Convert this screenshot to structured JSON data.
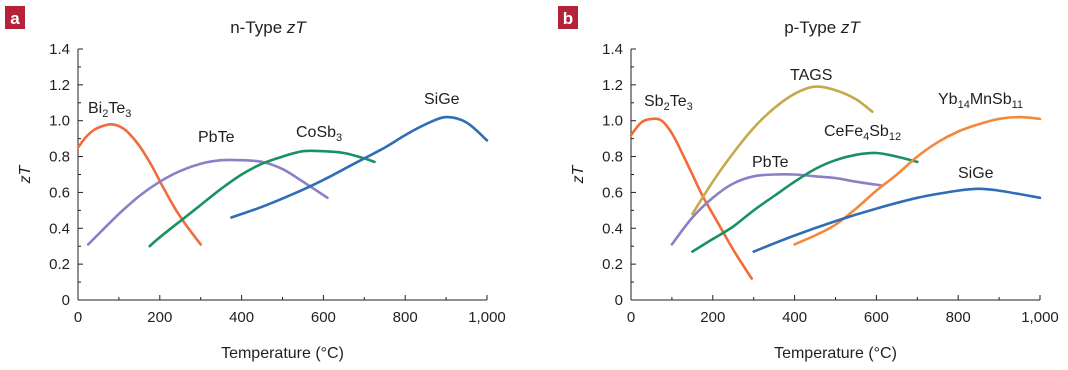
{
  "chart_data": [
    {
      "type": "line",
      "panel_label": "a",
      "title_prefix": "n-Type ",
      "title_italic": "zT",
      "xlabel": "Temperature (°C)",
      "ylabel": "zT",
      "xlim": [
        0,
        1000
      ],
      "ylim": [
        0,
        1.4
      ],
      "xticks": [
        "0",
        "200",
        "400",
        "600",
        "800",
        "1,000"
      ],
      "yticks": [
        "0",
        "0.2",
        "0.4",
        "0.6",
        "0.8",
        "1.0",
        "1.2",
        "1.4"
      ],
      "grid": false,
      "series": [
        {
          "name": "Bi",
          "sub1": "2",
          "mid": "Te",
          "sub2": "3",
          "end": "",
          "color": "#f26b3a",
          "points": [
            [
              0,
              0.85
            ],
            [
              20,
              0.91
            ],
            [
              40,
              0.95
            ],
            [
              60,
              0.97
            ],
            [
              80,
              0.98
            ],
            [
              100,
              0.97
            ],
            [
              120,
              0.94
            ],
            [
              150,
              0.86
            ],
            [
              180,
              0.75
            ],
            [
              210,
              0.62
            ],
            [
              240,
              0.5
            ],
            [
              270,
              0.4
            ],
            [
              300,
              0.31
            ]
          ]
        },
        {
          "name": "PbTe",
          "color": "#8b7fc7",
          "points": [
            [
              25,
              0.31
            ],
            [
              60,
              0.39
            ],
            [
              100,
              0.48
            ],
            [
              150,
              0.58
            ],
            [
              200,
              0.66
            ],
            [
              250,
              0.72
            ],
            [
              300,
              0.76
            ],
            [
              350,
              0.78
            ],
            [
              400,
              0.78
            ],
            [
              450,
              0.77
            ],
            [
              500,
              0.73
            ],
            [
              550,
              0.66
            ],
            [
              610,
              0.57
            ]
          ]
        },
        {
          "name": "CoSb",
          "sub1": "3",
          "mid": "",
          "sub2": "",
          "end": "",
          "color": "#1a9160",
          "points": [
            [
              175,
              0.3
            ],
            [
              200,
              0.35
            ],
            [
              250,
              0.44
            ],
            [
              300,
              0.53
            ],
            [
              350,
              0.62
            ],
            [
              400,
              0.7
            ],
            [
              450,
              0.76
            ],
            [
              500,
              0.8
            ],
            [
              550,
              0.83
            ],
            [
              600,
              0.83
            ],
            [
              650,
              0.82
            ],
            [
              700,
              0.79
            ],
            [
              725,
              0.77
            ]
          ]
        },
        {
          "name": "SiGe",
          "color": "#2f6db5",
          "points": [
            [
              375,
              0.46
            ],
            [
              450,
              0.52
            ],
            [
              525,
              0.59
            ],
            [
              600,
              0.67
            ],
            [
              675,
              0.76
            ],
            [
              750,
              0.85
            ],
            [
              800,
              0.92
            ],
            [
              850,
              0.98
            ],
            [
              900,
              1.02
            ],
            [
              950,
              0.99
            ],
            [
              1000,
              0.89
            ]
          ]
        }
      ]
    },
    {
      "type": "line",
      "panel_label": "b",
      "title_prefix": "p-Type ",
      "title_italic": "zT",
      "xlabel": "Temperature (°C)",
      "ylabel": "zT",
      "xlim": [
        0,
        1000
      ],
      "ylim": [
        0,
        1.4
      ],
      "xticks": [
        "0",
        "200",
        "400",
        "600",
        "800",
        "1,000"
      ],
      "yticks": [
        "0",
        "0.2",
        "0.4",
        "0.6",
        "0.8",
        "1.0",
        "1.2",
        "1.4"
      ],
      "grid": false,
      "series": [
        {
          "name": "Sb",
          "sub1": "2",
          "mid": "Te",
          "sub2": "3",
          "end": "",
          "color": "#f26b3a",
          "points": [
            [
              0,
              0.92
            ],
            [
              25,
              0.99
            ],
            [
              50,
              1.01
            ],
            [
              75,
              1.0
            ],
            [
              100,
              0.93
            ],
            [
              125,
              0.82
            ],
            [
              150,
              0.7
            ],
            [
              175,
              0.58
            ],
            [
              200,
              0.48
            ],
            [
              225,
              0.38
            ],
            [
              250,
              0.28
            ],
            [
              275,
              0.19
            ],
            [
              295,
              0.12
            ]
          ]
        },
        {
          "name": "TAGS",
          "color": "#c7a84a",
          "points": [
            [
              150,
              0.48
            ],
            [
              200,
              0.66
            ],
            [
              250,
              0.82
            ],
            [
              300,
              0.96
            ],
            [
              350,
              1.07
            ],
            [
              400,
              1.15
            ],
            [
              450,
              1.19
            ],
            [
              500,
              1.17
            ],
            [
              550,
              1.12
            ],
            [
              590,
              1.05
            ]
          ]
        },
        {
          "name": "PbTe",
          "color": "#8b7fc7",
          "points": [
            [
              100,
              0.31
            ],
            [
              150,
              0.46
            ],
            [
              200,
              0.57
            ],
            [
              250,
              0.65
            ],
            [
              300,
              0.69
            ],
            [
              350,
              0.7
            ],
            [
              400,
              0.7
            ],
            [
              450,
              0.69
            ],
            [
              500,
              0.68
            ],
            [
              550,
              0.66
            ],
            [
              610,
              0.64
            ]
          ]
        },
        {
          "name": "CeFe",
          "sub1": "4",
          "mid": "Sb",
          "sub2": "12",
          "end": "",
          "color": "#1a9160",
          "points": [
            [
              150,
              0.27
            ],
            [
              200,
              0.34
            ],
            [
              250,
              0.41
            ],
            [
              300,
              0.5
            ],
            [
              350,
              0.58
            ],
            [
              400,
              0.66
            ],
            [
              450,
              0.73
            ],
            [
              500,
              0.78
            ],
            [
              550,
              0.81
            ],
            [
              600,
              0.82
            ],
            [
              650,
              0.8
            ],
            [
              700,
              0.77
            ]
          ]
        },
        {
          "name": "Yb",
          "sub1": "14",
          "mid": "MnSb",
          "sub2": "11",
          "end": "",
          "color": "#f5873a",
          "points": [
            [
              400,
              0.31
            ],
            [
              450,
              0.36
            ],
            [
              500,
              0.42
            ],
            [
              550,
              0.51
            ],
            [
              600,
              0.61
            ],
            [
              650,
              0.7
            ],
            [
              700,
              0.8
            ],
            [
              750,
              0.88
            ],
            [
              800,
              0.94
            ],
            [
              850,
              0.98
            ],
            [
              900,
              1.01
            ],
            [
              950,
              1.02
            ],
            [
              1000,
              1.01
            ]
          ]
        },
        {
          "name": "SiGe",
          "color": "#2f6db5",
          "points": [
            [
              300,
              0.27
            ],
            [
              400,
              0.36
            ],
            [
              500,
              0.44
            ],
            [
              600,
              0.51
            ],
            [
              700,
              0.57
            ],
            [
              800,
              0.61
            ],
            [
              850,
              0.62
            ],
            [
              900,
              0.61
            ],
            [
              1000,
              0.57
            ]
          ]
        }
      ]
    }
  ]
}
